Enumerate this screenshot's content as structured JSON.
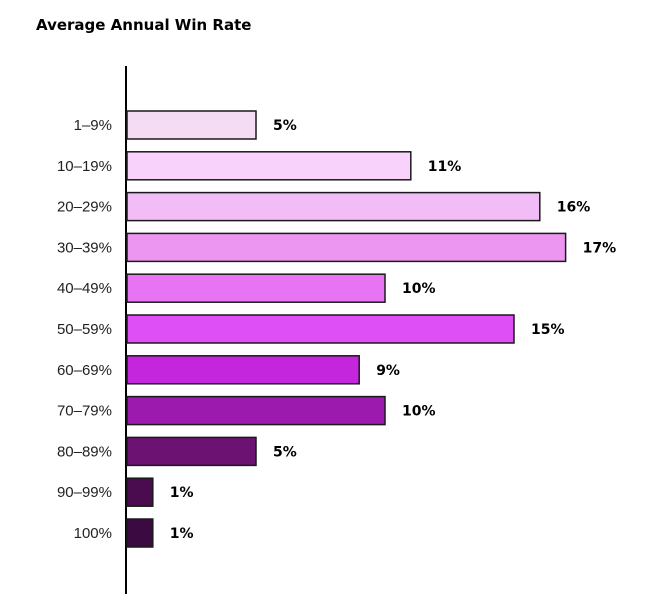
{
  "chart_data": {
    "type": "bar",
    "orientation": "horizontal",
    "title": "Average Annual Win Rate",
    "categories": [
      "1–9%",
      "10–19%",
      "20–29%",
      "30–39%",
      "40–49%",
      "50–59%",
      "60–69%",
      "70–79%",
      "80–89%",
      "90–99%",
      "100%"
    ],
    "values": [
      5,
      11,
      16,
      17,
      10,
      15,
      9,
      10,
      5,
      1,
      1
    ],
    "value_labels": [
      "5%",
      "11%",
      "16%",
      "17%",
      "10%",
      "15%",
      "9%",
      "10%",
      "5%",
      "1%",
      "1%"
    ],
    "colors": [
      "#f4ddf4",
      "#f8d2fb",
      "#f2bcf7",
      "#ec96f1",
      "#e774f2",
      "#df4ff6",
      "#c326dd",
      "#9c1aad",
      "#6b1272",
      "#4a0c4e",
      "#3b0a40"
    ],
    "xlabel": "",
    "ylabel": "",
    "grid": false
  }
}
